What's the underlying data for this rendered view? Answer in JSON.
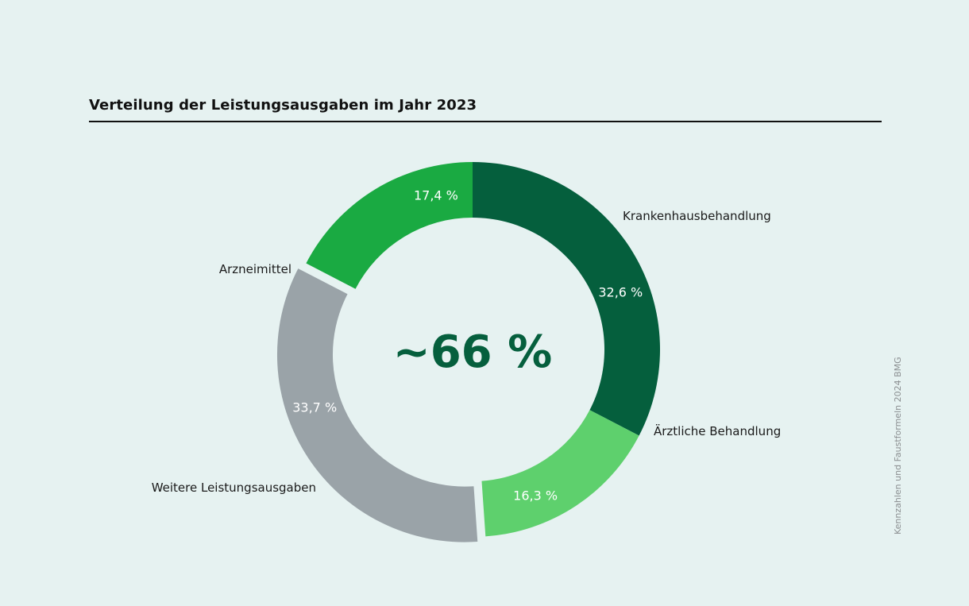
{
  "title": "Verteilung der Leistungsausgaben im Jahr 2023",
  "source": "Kennzahlen und Faustformeln 2024 BMG",
  "chart_data": {
    "type": "pie",
    "variant": "donut",
    "title": "Verteilung der Leistungsausgaben im Jahr 2023",
    "center_label": "~66 %",
    "slices": [
      {
        "name": "Krankenhausbehandlung",
        "value": 32.6,
        "value_label": "32,6 %",
        "color": "#055f3d",
        "highlighted": true
      },
      {
        "name": "Ärztliche Behandlung",
        "value": 16.3,
        "value_label": "16,3 %",
        "color": "#5ed06d",
        "highlighted": true
      },
      {
        "name": "Weitere Leistungsausgaben",
        "value": 33.7,
        "value_label": "33,7 %",
        "color": "#9aa3a8",
        "highlighted": false
      },
      {
        "name": "Arzneimittel",
        "value": 17.4,
        "value_label": "17,4 %",
        "color": "#1aaa42",
        "highlighted": true
      }
    ],
    "start_angle": "top, clockwise"
  }
}
